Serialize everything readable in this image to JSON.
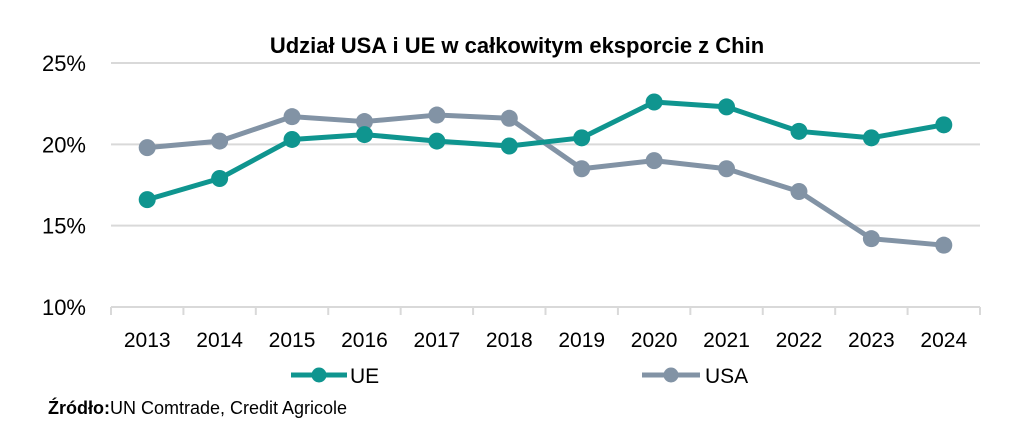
{
  "chart_data": {
    "type": "line",
    "title": "Udział USA i UE w całkowitym eksporcie z Chin",
    "xlabel": "",
    "ylabel": "",
    "x": [
      "2013",
      "2014",
      "2015",
      "2016",
      "2017",
      "2018",
      "2019",
      "2020",
      "2021",
      "2022",
      "2023",
      "2024"
    ],
    "series": [
      {
        "name": "UE",
        "color": "#0f958f",
        "values": [
          16.6,
          17.9,
          20.3,
          20.6,
          20.2,
          19.9,
          20.4,
          22.6,
          22.3,
          20.8,
          20.4,
          21.2
        ]
      },
      {
        "name": "USA",
        "color": "#8293a5",
        "values": [
          19.8,
          20.2,
          21.7,
          21.4,
          21.8,
          21.6,
          18.5,
          19.0,
          18.5,
          17.1,
          14.2,
          13.8
        ]
      }
    ],
    "ylim": [
      10,
      25
    ],
    "yticks": [
      10,
      15,
      20,
      25
    ],
    "ytick_labels": [
      "10%",
      "15%",
      "20%",
      "25%"
    ],
    "grid": true,
    "legend_position": "bottom"
  },
  "source": {
    "label": "Źródło:",
    "text": "UN Comtrade, Credit Agricole"
  }
}
